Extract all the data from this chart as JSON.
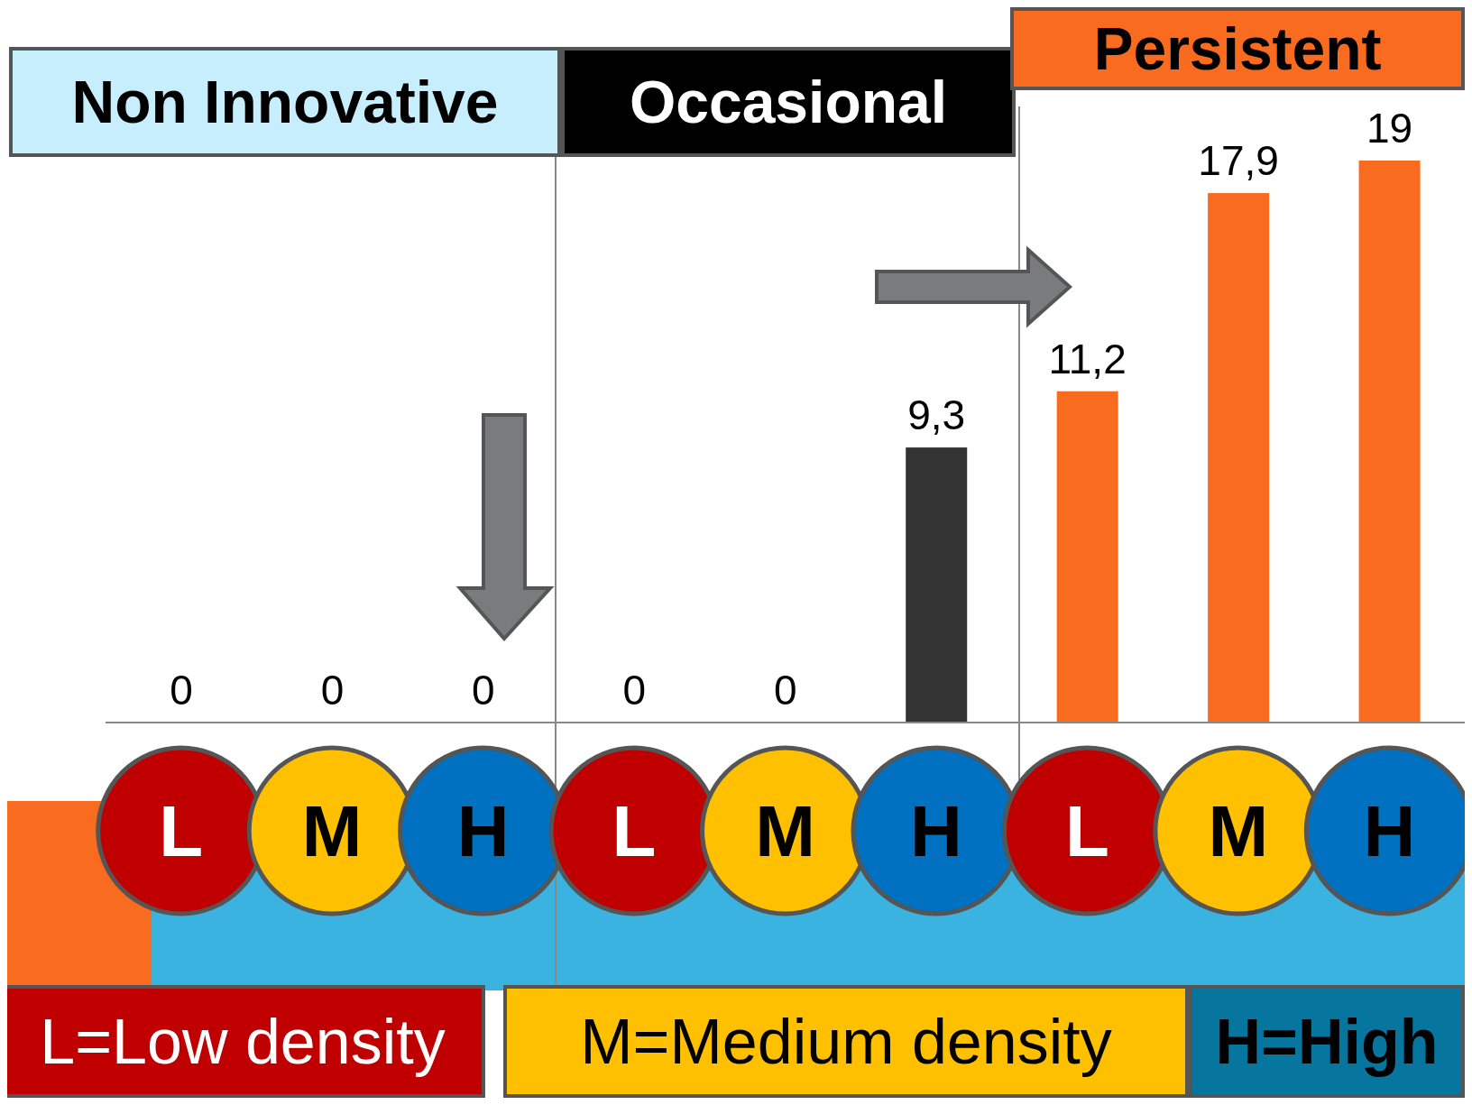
{
  "chart_data": {
    "type": "bar",
    "categories": [
      "L",
      "M",
      "H",
      "L",
      "M",
      "H",
      "L",
      "M",
      "H"
    ],
    "values": [
      0,
      0,
      0,
      0,
      0,
      9.3,
      11.2,
      17.9,
      19
    ],
    "colors": [
      "#c6eefc",
      "#c6eefc",
      "#c6eefc",
      "#333333",
      "#333333",
      "#333333",
      "#f96b1e",
      "#f96b1e",
      "#f96b1e"
    ],
    "value_labels": [
      "0",
      "0",
      "0",
      "0",
      "0",
      "9,3",
      "11,2",
      "17,9",
      "19"
    ],
    "annotations": [
      "Non Innovative",
      "Occasional",
      "Persistent",
      "L=Low density",
      "M=Medium density",
      "H=High"
    ]
  }
}
